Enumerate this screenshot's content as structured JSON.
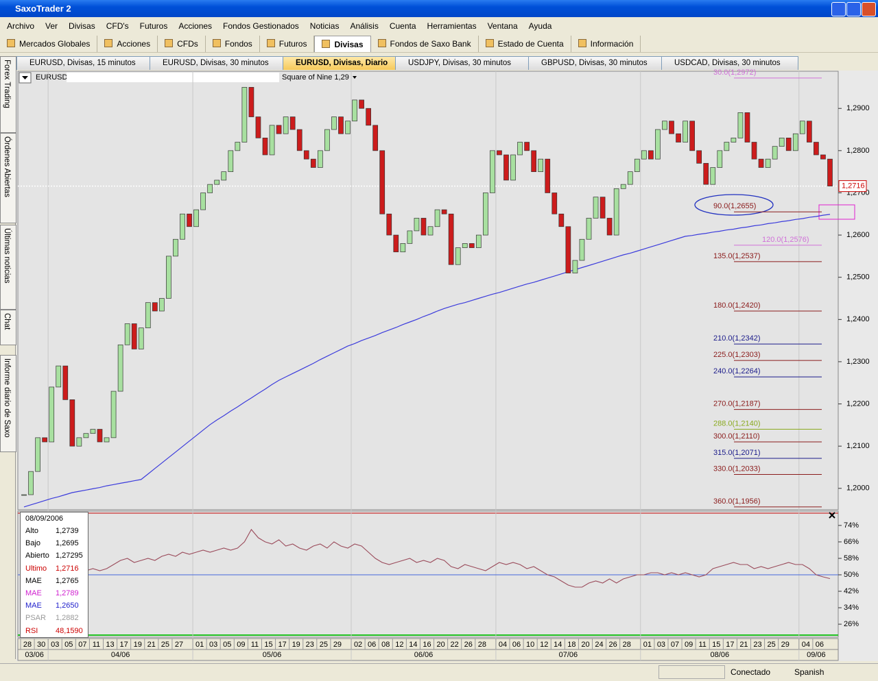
{
  "window": {
    "title": "SaxoTrader 2"
  },
  "menu": [
    "Archivo",
    "Ver",
    "Divisas",
    "CFD's",
    "Futuros",
    "Acciones",
    "Fondos Gestionados",
    "Noticias",
    "Análisis",
    "Cuenta",
    "Herramientas",
    "Ventana",
    "Ayuda"
  ],
  "toolbar": [
    "Mercados Globales",
    "Acciones",
    "CFDs",
    "Fondos",
    "Futuros",
    "Divisas",
    "Fondos de Saxo Bank",
    "Estado de Cuenta",
    "Información"
  ],
  "tabs": [
    "EURUSD, Divisas, 15 minutos",
    "EURUSD, Divisas, 30 minutos",
    "EURUSD, Divisas, Diario",
    "USDJPY, Divisas, 30 minutos",
    "GBPUSD, Divisas, 30 minutos",
    "USDCAD, Divisas, 30 minutos"
  ],
  "sidebar": [
    "Forex Trading",
    "Órdenes Abiertas",
    "Últimas noticias",
    "Chat",
    "Informe diario de Saxo"
  ],
  "chart_header": {
    "symbol": "EURUSD",
    "study": "Square of Nine 1,29"
  },
  "chart_data": [
    {
      "type": "candlestick",
      "categories": [
        "28",
        null,
        "30",
        null,
        "03",
        null,
        "05",
        null,
        "07",
        null,
        "11",
        null,
        "13",
        null,
        "17",
        null,
        "19",
        null,
        "21",
        null,
        "25",
        null,
        "27",
        null,
        null,
        "01",
        null,
        "03",
        null,
        "05",
        null,
        "09",
        null,
        "11",
        null,
        "15",
        null,
        "17",
        null,
        "19",
        null,
        "23",
        null,
        "25",
        null,
        "29",
        null,
        null,
        "02",
        null,
        "06",
        null,
        "08",
        null,
        "12",
        null,
        "14",
        null,
        "16",
        null,
        "20",
        null,
        "22",
        null,
        "26",
        null,
        "28",
        null,
        null,
        "04",
        null,
        "06",
        null,
        "10",
        null,
        "12",
        null,
        "14",
        null,
        "18",
        null,
        "20",
        null,
        "24",
        null,
        "26",
        null,
        "28",
        null,
        null,
        "01",
        null,
        "03",
        null,
        "07",
        null,
        "09",
        null,
        "11",
        null,
        "15",
        null,
        "17",
        null,
        "21",
        null,
        "23",
        null,
        "25",
        null,
        "29",
        null,
        null,
        "04",
        null,
        "06",
        null,
        null
      ],
      "months": [
        "03/06",
        "04/06",
        "05/06",
        "06/06",
        "07/06",
        "08/06",
        "09/06"
      ],
      "values": [
        1.1985,
        1.204,
        1.212,
        1.211,
        1.224,
        1.229,
        1.221,
        1.21,
        1.212,
        1.213,
        1.214,
        1.211,
        1.212,
        1.223,
        1.234,
        1.239,
        1.233,
        1.238,
        1.244,
        1.242,
        1.245,
        1.255,
        1.259,
        1.265,
        1.262,
        1.266,
        1.27,
        1.272,
        1.273,
        1.275,
        1.28,
        1.282,
        1.295,
        1.288,
        1.283,
        1.279,
        1.286,
        1.284,
        1.288,
        1.285,
        1.28,
        1.278,
        1.276,
        1.28,
        1.285,
        1.288,
        1.284,
        1.287,
        1.292,
        1.29,
        1.286,
        1.28,
        1.265,
        1.26,
        1.256,
        1.258,
        1.261,
        1.264,
        1.26,
        1.262,
        1.266,
        1.265,
        1.253,
        1.257,
        1.258,
        1.257,
        1.26,
        1.27,
        1.28,
        1.279,
        1.273,
        1.279,
        1.282,
        1.28,
        1.275,
        1.278,
        1.27,
        1.265,
        1.262,
        1.251,
        1.254,
        1.259,
        1.264,
        1.269,
        1.264,
        1.26,
        1.271,
        1.272,
        1.275,
        1.278,
        1.28,
        1.278,
        1.285,
        1.287,
        1.284,
        1.282,
        1.287,
        1.28,
        1.277,
        1.272,
        1.276,
        1.28,
        1.282,
        1.283,
        1.289,
        1.282,
        1.278,
        1.276,
        1.278,
        1.281,
        1.283,
        1.28,
        1.284,
        1.287,
        1.282,
        1.279,
        1.278,
        1.2716
      ],
      "up_color": "#a8e0a0",
      "down_color": "#cc1c1c",
      "ma": {
        "color": "#3b3bdc",
        "values": [
          1.1956,
          1.1961,
          1.1966,
          1.1971,
          1.1976,
          1.198,
          1.1985,
          1.199,
          1.1993,
          1.1996,
          1.1999,
          1.2002,
          1.2006,
          1.2009,
          1.2012,
          1.2015,
          1.2018,
          1.2021,
          1.2034,
          1.2047,
          1.206,
          1.2073,
          1.2086,
          1.2099,
          1.2112,
          1.2125,
          1.2138,
          1.2151,
          1.2162,
          1.2172,
          1.2183,
          1.2193,
          1.2204,
          1.2214,
          1.2225,
          1.2235,
          1.2246,
          1.2256,
          1.2264,
          1.2272,
          1.228,
          1.2288,
          1.2296,
          1.2305,
          1.2313,
          1.2321,
          1.2329,
          1.2337,
          1.2343,
          1.235,
          1.2356,
          1.2362,
          1.2369,
          1.2375,
          1.2381,
          1.2388,
          1.2394,
          1.24,
          1.2407,
          1.2413,
          1.242,
          1.2426,
          1.2431,
          1.2436,
          1.244,
          1.2445,
          1.245,
          1.2455,
          1.246,
          1.2464,
          1.2469,
          1.2474,
          1.2479,
          1.2484,
          1.2488,
          1.2493,
          1.2498,
          1.2503,
          1.2508,
          1.2513,
          1.2518,
          1.2523,
          1.2528,
          1.2533,
          1.2538,
          1.2543,
          1.2548,
          1.2553,
          1.2557,
          1.2562,
          1.2567,
          1.2572,
          1.2577,
          1.2582,
          1.2587,
          1.2592,
          1.2597,
          1.2599,
          1.2602,
          1.2604,
          1.2607,
          1.2609,
          1.2612,
          1.2614,
          1.2617,
          1.2619,
          1.2622,
          1.2624,
          1.2627,
          1.2629,
          1.2632,
          1.2634,
          1.2637,
          1.2639,
          1.2642,
          1.2644,
          1.2647,
          1.2649
        ]
      },
      "levels": [
        {
          "label": "30.0(1,2972)",
          "value": 1.2972,
          "color": "#d070d8"
        },
        {
          "label": "90.0(1,2655)",
          "value": 1.2655,
          "color": "#8a1a1a"
        },
        {
          "label": "120.0(1,2576)",
          "value": 1.2576,
          "color": "#d070d8"
        },
        {
          "label": "135.0(1,2537)",
          "value": 1.2537,
          "color": "#8a1a1a"
        },
        {
          "label": "180.0(1,2420)",
          "value": 1.242,
          "color": "#8a1a1a"
        },
        {
          "label": "210.0(1,2342)",
          "value": 1.2342,
          "color": "#1a1a8a"
        },
        {
          "label": "225.0(1,2303)",
          "value": 1.2303,
          "color": "#8a1a1a"
        },
        {
          "label": "240.0(1,2264)",
          "value": 1.2264,
          "color": "#1a1a8a"
        },
        {
          "label": "270.0(1,2187)",
          "value": 1.2187,
          "color": "#8a1a1a"
        },
        {
          "label": "288.0(1,2140)",
          "value": 1.214,
          "color": "#8aaa20"
        },
        {
          "label": "300.0(1,2110)",
          "value": 1.211,
          "color": "#8a1a1a"
        },
        {
          "label": "315.0(1,2071)",
          "value": 1.2071,
          "color": "#1a1a8a"
        },
        {
          "label": "330.0(1,2033)",
          "value": 1.2033,
          "color": "#8a1a1a"
        },
        {
          "label": "360.0(1,1956)",
          "value": 1.1956,
          "color": "#8a1a1a"
        }
      ],
      "last": {
        "value": 1.2716,
        "label": "1,2716"
      },
      "ylim": [
        1.1951,
        1.2988
      ],
      "yticks": [
        {
          "value": 1.29,
          "label": "1,2900"
        },
        {
          "value": 1.28,
          "label": "1,2800"
        },
        {
          "value": 1.27,
          "label": "1,2700"
        },
        {
          "value": 1.26,
          "label": "1,2600"
        },
        {
          "value": 1.25,
          "label": "1,2500"
        },
        {
          "value": 1.24,
          "label": "1,2400"
        },
        {
          "value": 1.23,
          "label": "1,2300"
        },
        {
          "value": 1.22,
          "label": "1,2200"
        },
        {
          "value": 1.21,
          "label": "1,2100"
        },
        {
          "value": 1.2,
          "label": "1,2000"
        }
      ]
    },
    {
      "type": "line",
      "color": "#9a4a5a",
      "values": [
        51,
        50,
        52,
        51,
        53,
        52,
        50,
        49,
        51,
        52,
        53,
        52,
        53,
        55,
        57,
        58,
        56,
        57,
        58,
        57,
        59,
        60,
        59,
        61,
        60,
        61,
        62,
        61,
        62,
        63,
        62,
        63,
        66,
        72,
        68,
        66,
        65,
        67,
        64,
        65,
        63,
        62,
        64,
        65,
        63,
        66,
        64,
        63,
        65,
        64,
        61,
        58,
        56,
        55,
        56,
        57,
        58,
        56,
        57,
        56,
        58,
        57,
        54,
        53,
        55,
        54,
        53,
        52,
        54,
        56,
        55,
        56,
        55,
        53,
        54,
        52,
        50,
        49,
        47,
        45,
        44,
        44,
        46,
        47,
        46,
        48,
        46,
        48,
        49,
        50,
        50,
        51,
        51,
        50,
        51,
        50,
        51,
        50,
        49,
        50,
        53,
        54,
        55,
        56,
        55,
        55,
        53,
        54,
        53,
        54,
        55,
        56,
        55,
        55,
        53,
        50,
        49,
        48.159
      ],
      "ref_line": {
        "value": 50,
        "color": "#4466dd"
      },
      "ylim": [
        19.7,
        80.3
      ],
      "yticks": [
        {
          "value": 74,
          "label": "74%"
        },
        {
          "value": 66,
          "label": "66%"
        },
        {
          "value": 58,
          "label": "58%"
        },
        {
          "value": 50,
          "label": "50%"
        },
        {
          "value": 42,
          "label": "42%"
        },
        {
          "value": 34,
          "label": "34%"
        },
        {
          "value": 26,
          "label": "26%"
        }
      ]
    }
  ],
  "info_panel": {
    "date": "08/09/2006",
    "rows": [
      {
        "label": "Alto",
        "value": "1,2739",
        "color": "#000000"
      },
      {
        "label": "Bajo",
        "value": "1,2695",
        "color": "#000000"
      },
      {
        "label": "Abierto",
        "value": "1,27295",
        "color": "#000000"
      },
      {
        "label": "Ultimo",
        "value": "1,2716",
        "color": "#cc0000"
      },
      {
        "label": "MAE",
        "value": "1,2765",
        "color": "#000000"
      },
      {
        "label": "MAE",
        "value": "1,2789",
        "color": "#d020d0"
      },
      {
        "label": "MAE",
        "value": "1,2650",
        "color": "#2020cc"
      },
      {
        "label": "PSAR",
        "value": "1,2882",
        "color": "#999999"
      },
      {
        "label": "RSI",
        "value": "48,1590",
        "color": "#cc0000"
      }
    ]
  },
  "status": {
    "connection": "Conectado",
    "language": "Spanish"
  }
}
